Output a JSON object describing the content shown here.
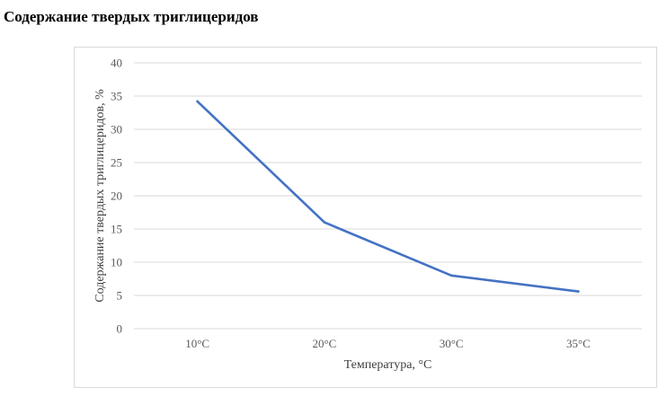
{
  "page": {
    "title": "Содержание твердых триглицеридов"
  },
  "chart_data": {
    "type": "line",
    "title": "",
    "xlabel": "Температура, °С",
    "ylabel": "Содержание твердых триглицеридов, %",
    "categories": [
      "10°С",
      "20°С",
      "30°С",
      "35°С"
    ],
    "series": [
      {
        "values": [
          34.2,
          16.0,
          8.0,
          5.6
        ]
      }
    ],
    "ylim": [
      0,
      40
    ],
    "yticks": [
      0,
      5,
      10,
      15,
      20,
      25,
      30,
      35,
      40
    ],
    "grid": true,
    "legend": "none",
    "colors": {
      "line": "#4472c4",
      "grid": "#d9d9d9",
      "tick_text": "#595959",
      "axis_title": "#404040"
    }
  }
}
